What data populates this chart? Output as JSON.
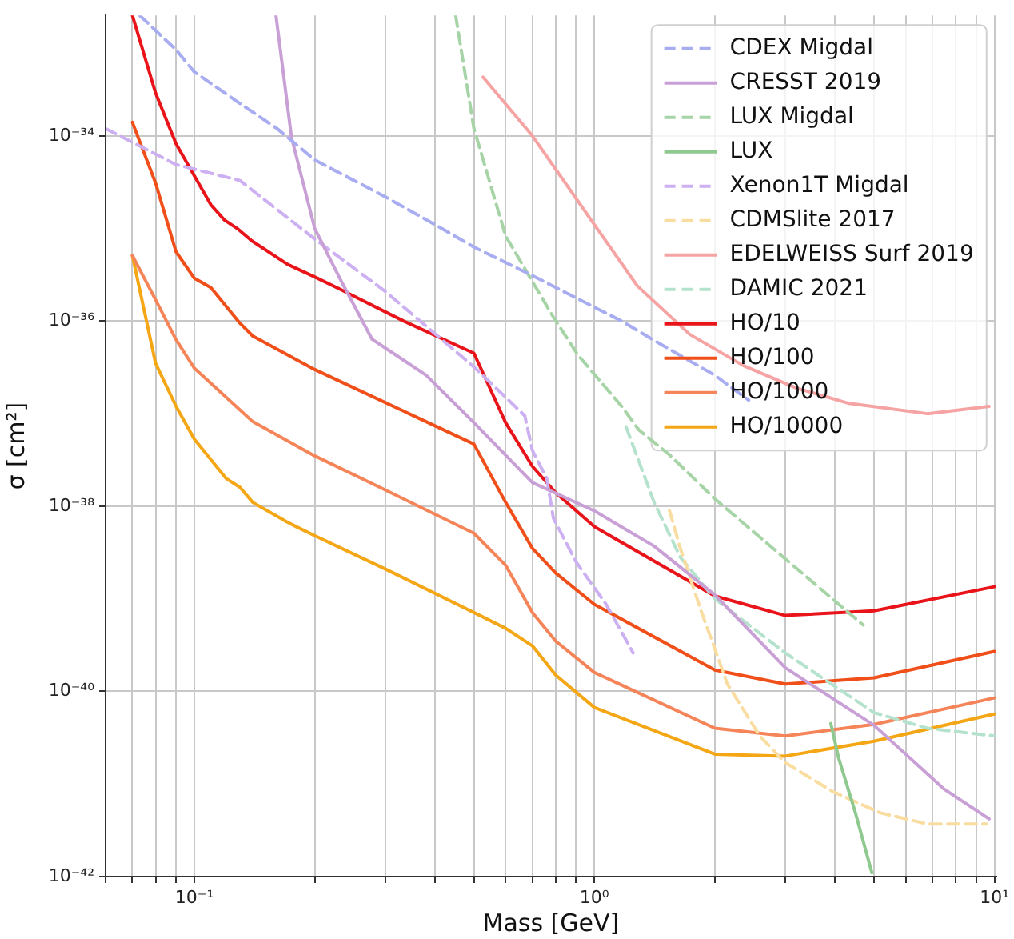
{
  "chart_data": {
    "type": "line",
    "xlabel": "Mass [GeV]",
    "ylabel": "σ [cm²]",
    "log": "xy",
    "grid": true,
    "legend": "top right",
    "marker": "none",
    "xlim": [
      0.06,
      10.1
    ],
    "ylim": [
      1e-42,
      2e-33
    ],
    "xticks": [
      {
        "value": 0.06,
        "label": null
      },
      {
        "value": 0.07,
        "label": null
      },
      {
        "value": 0.08,
        "label": null
      },
      {
        "value": 0.09,
        "label": null
      },
      {
        "value": 0.1,
        "label": "10⁻¹"
      },
      {
        "value": 0.2,
        "label": null
      },
      {
        "value": 0.3,
        "label": null
      },
      {
        "value": 0.4,
        "label": null
      },
      {
        "value": 0.5,
        "label": null
      },
      {
        "value": 0.6,
        "label": null
      },
      {
        "value": 0.7,
        "label": null
      },
      {
        "value": 0.8,
        "label": null
      },
      {
        "value": 0.9,
        "label": null
      },
      {
        "value": 1,
        "label": "10⁰"
      },
      {
        "value": 2,
        "label": null
      },
      {
        "value": 3,
        "label": null
      },
      {
        "value": 4,
        "label": null
      },
      {
        "value": 5,
        "label": null
      },
      {
        "value": 6,
        "label": null
      },
      {
        "value": 7,
        "label": null
      },
      {
        "value": 8,
        "label": null
      },
      {
        "value": 9,
        "label": null
      },
      {
        "value": 10,
        "label": "10¹"
      }
    ],
    "yticks": [
      {
        "value": 1e-42,
        "label": "10⁻⁴²"
      },
      {
        "value": 1e-40,
        "label": "10⁻⁴⁰"
      },
      {
        "value": 1e-38,
        "label": "10⁻³⁸"
      },
      {
        "value": 1e-36,
        "label": "10⁻³⁶"
      },
      {
        "value": 1e-34,
        "label": "10⁻³⁴"
      }
    ],
    "series": [
      {
        "name": "CDEX Migdal",
        "color": "#a8acf0",
        "line_style": "dashed",
        "x": [
          0.073,
          0.09,
          0.1,
          0.127,
          0.161,
          0.2,
          0.3,
          0.4,
          0.5,
          0.7,
          1.17,
          1.4,
          2.0,
          2.43
        ],
        "values": [
          2e-33,
          8.5e-34,
          4.9e-34,
          2.4e-34,
          1.2e-34,
          5.5e-35,
          2.2e-35,
          1.1e-35,
          6.3e-36,
          3.1e-36,
          1e-36,
          6.3e-37,
          2.6e-37,
          1.4e-37
        ]
      },
      {
        "name": "CRESST 2019",
        "color": "#c9a0d6",
        "line_style": "solid",
        "x": [
          0.16,
          0.175,
          0.2,
          0.232,
          0.278,
          0.38,
          0.5,
          0.7,
          1,
          1.41,
          2,
          3,
          5,
          7.46,
          9.7
        ],
        "values": [
          2e-33,
          9.6e-35,
          1e-35,
          2.8e-36,
          6.4e-37,
          2.6e-37,
          8e-38,
          1.8e-38,
          8.9e-39,
          3.7e-39,
          1.1e-39,
          1.8e-40,
          4.3e-41,
          8.9e-42,
          4.2e-42
        ]
      },
      {
        "name": "LUX Migdal",
        "color": "#a6d4a6",
        "line_style": "dashed",
        "x": [
          0.45,
          0.5,
          0.6,
          0.79,
          0.91,
          1.17,
          1.29,
          1.54,
          2,
          3,
          4.7
        ],
        "values": [
          2e-33,
          1.2e-34,
          8.3e-36,
          1.1e-36,
          4.3e-37,
          1.2e-37,
          6.7e-38,
          3.6e-38,
          1.2e-38,
          2.7e-39,
          5.2e-40
        ]
      },
      {
        "name": "LUX",
        "color": "#8fc98f",
        "line_style": "solid",
        "x": [
          3.9,
          4.08,
          4.48,
          4.94
        ],
        "values": [
          4.5e-41,
          1.9e-41,
          5.1e-42,
          1.1e-42
        ]
      },
      {
        "name": "Xenon1T Migdal",
        "color": "#cdb0f2",
        "line_style": "dashed",
        "x": [
          0.06,
          0.09,
          0.13,
          0.2,
          0.3,
          0.5,
          0.67,
          0.7,
          0.76,
          0.79,
          0.9,
          1.07,
          1.25
        ],
        "values": [
          1.2e-34,
          4.9e-35,
          3.3e-35,
          7.7e-36,
          2.1e-36,
          3.2e-37,
          9.5e-38,
          4e-38,
          2e-38,
          7.4e-39,
          2.5e-39,
          8.7e-40,
          2.6e-40
        ]
      },
      {
        "name": "CDMSlite 2017",
        "color": "#f9dca0",
        "line_style": "dashed",
        "x": [
          1.54,
          1.64,
          1.84,
          2.15,
          2.59,
          3,
          3.94,
          5.17,
          6.8,
          9.55
        ],
        "values": [
          9e-39,
          3.5e-39,
          7.8e-40,
          1.2e-40,
          3.3e-41,
          1.7e-41,
          8.3e-42,
          4.9e-42,
          3.7e-42,
          3.7e-42
        ]
      },
      {
        "name": "EDELWEISS Surf 2019",
        "color": "#f5a3a3",
        "line_style": "solid",
        "x": [
          0.527,
          0.7,
          1.0,
          1.28,
          1.73,
          2.36,
          3.19,
          4.3,
          6.8,
          9.7
        ],
        "values": [
          4.3e-34,
          1e-34,
          1.1e-35,
          2.4e-36,
          7.2e-37,
          3.3e-37,
          1.9e-37,
          1.3e-37,
          1e-37,
          1.2e-37
        ]
      },
      {
        "name": "DAMIC 2021",
        "color": "#b5e2cc",
        "line_style": "dashed",
        "x": [
          1.2,
          1.41,
          1.64,
          2,
          3,
          5,
          6.8,
          10
        ],
        "values": [
          7.2e-38,
          1.1e-38,
          2.8e-39,
          1e-39,
          2.6e-40,
          5.9e-41,
          4e-41,
          3.3e-41
        ]
      },
      {
        "name": "HO/10",
        "color": "#e8141a",
        "line_style": "solid",
        "x": [
          0.07,
          0.08,
          0.09,
          0.11,
          0.119,
          0.128,
          0.139,
          0.171,
          0.2,
          0.232,
          0.334,
          0.5,
          0.6,
          0.7,
          0.8,
          1,
          2,
          3,
          5,
          10
        ],
        "values": [
          2e-33,
          2.9e-34,
          8.2e-35,
          1.8e-35,
          1.23e-35,
          1e-35,
          7.4e-36,
          4.1e-36,
          3e-36,
          2.2e-36,
          1e-36,
          4.5e-37,
          8e-38,
          2.7e-38,
          1.4e-38,
          6e-39,
          1.07e-39,
          6.6e-40,
          7.4e-40,
          1.35e-39
        ]
      },
      {
        "name": "HO/100",
        "color": "#f04f1a",
        "line_style": "solid",
        "x": [
          0.07,
          0.08,
          0.09,
          0.1,
          0.11,
          0.13,
          0.14,
          0.2,
          0.5,
          0.6,
          0.7,
          0.8,
          1,
          2,
          3,
          5,
          10
        ],
        "values": [
          1.4e-34,
          3.1e-35,
          5.6e-36,
          2.9e-36,
          2.3e-36,
          9.5e-37,
          6.9e-37,
          3e-37,
          4.7e-38,
          1.1e-38,
          3.5e-39,
          1.9e-39,
          8.7e-40,
          1.7e-40,
          1.2e-40,
          1.4e-40,
          2.7e-40
        ]
      },
      {
        "name": "HO/1000",
        "color": "#f58559",
        "line_style": "solid",
        "x": [
          0.07,
          0.08,
          0.09,
          0.1,
          0.14,
          0.2,
          0.3,
          0.5,
          0.6,
          0.7,
          0.8,
          1,
          2,
          3,
          5,
          10
        ],
        "values": [
          5.1e-36,
          1.7e-36,
          6.3e-37,
          3.1e-37,
          8.2e-38,
          3.5e-38,
          1.5e-38,
          5.1e-39,
          2.3e-39,
          7.1e-40,
          3.5e-40,
          1.6e-40,
          4e-41,
          3.3e-41,
          4.4e-41,
          8.5e-41
        ]
      },
      {
        "name": "HO/10000",
        "color": "#f5a614",
        "line_style": "solid",
        "x": [
          0.07,
          0.08,
          0.09,
          0.1,
          0.12,
          0.13,
          0.14,
          0.17,
          0.18,
          0.2,
          0.3,
          0.5,
          0.6,
          0.7,
          0.8,
          1,
          2,
          3,
          5,
          10
        ],
        "values": [
          5.1e-36,
          3.5e-37,
          1.2e-37,
          5.3e-38,
          2e-38,
          1.6e-38,
          1.1e-38,
          6.8e-39,
          6e-39,
          4.8e-39,
          2.1e-39,
          7.1e-40,
          4.8e-40,
          3.1e-40,
          1.5e-40,
          6.7e-41,
          2.1e-41,
          2e-41,
          2.9e-41,
          5.7e-41
        ]
      }
    ]
  }
}
